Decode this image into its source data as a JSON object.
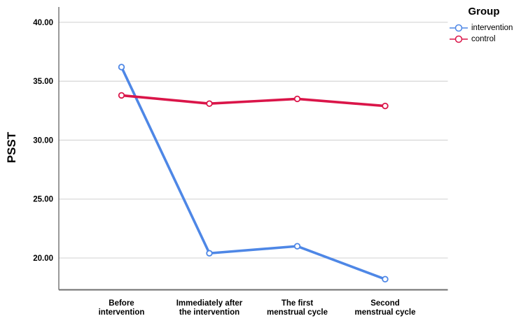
{
  "chart_data": {
    "type": "line",
    "title": "",
    "ylabel": "PSST",
    "xlabel": "",
    "categories": [
      "Before intervention",
      "Immediately after the intervention",
      "The first menstrual cycle",
      "Second menstrual cycle"
    ],
    "category_lines": [
      [
        "Before",
        "intervention"
      ],
      [
        "Immediately after",
        "the intervention"
      ],
      [
        "The first",
        "menstrual cycle"
      ],
      [
        "Second",
        "menstrual cycle"
      ]
    ],
    "y_ticks": [
      {
        "label": "40.00",
        "value": 40
      },
      {
        "label": "35.00",
        "value": 35
      },
      {
        "label": "30.00",
        "value": 30
      },
      {
        "label": "25.00",
        "value": 25
      },
      {
        "label": "20.00",
        "value": 20
      }
    ],
    "ylim": [
      17.3,
      41.3
    ],
    "grid": "horizontal",
    "legend": {
      "title": "Group",
      "position": "top-right"
    },
    "series": [
      {
        "name": "intervention",
        "color": "#4E87E6",
        "values": [
          36.2,
          20.4,
          21.0,
          18.2
        ]
      },
      {
        "name": "control",
        "color": "#DA1549",
        "values": [
          33.8,
          33.1,
          33.5,
          32.9
        ]
      }
    ],
    "colors": {
      "gridline": "#D9D9D9",
      "axis": "#6F6F6F",
      "text": "#000000",
      "background": "#FFFFFF"
    }
  }
}
